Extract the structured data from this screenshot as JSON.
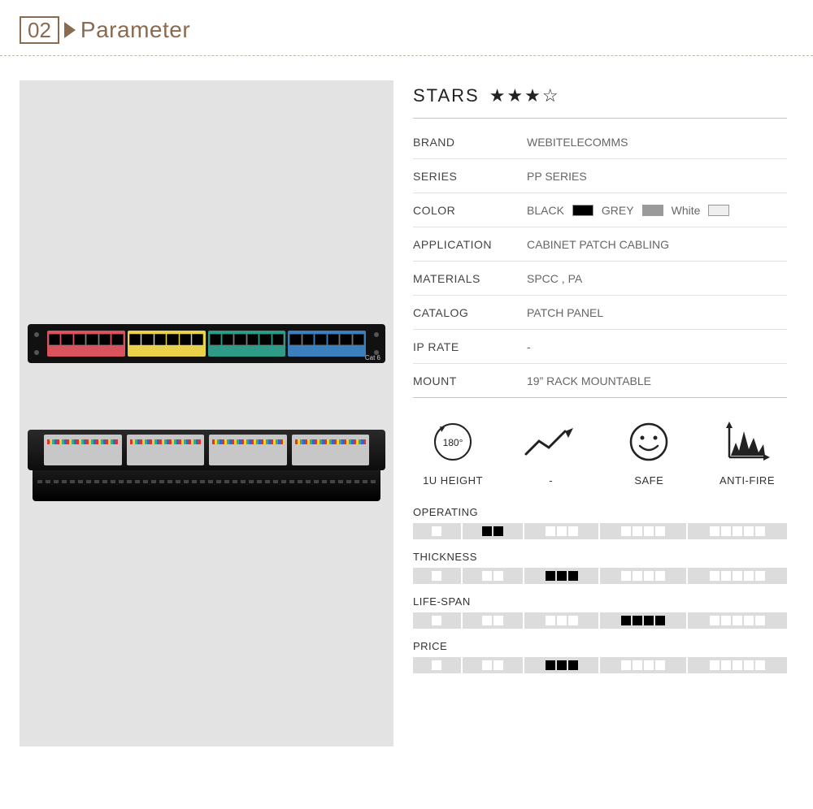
{
  "section": {
    "number": "02",
    "title": "Parameter"
  },
  "colors": {
    "accent": "#8a6b50",
    "panel_bg": "#e3e3e3",
    "port_groups": [
      "#d9535f",
      "#e9d24a",
      "#2e9b87",
      "#3b7fbf"
    ],
    "swatches": {
      "black": "#000000",
      "grey": "#9a9a9a",
      "white": "#efefef"
    }
  },
  "stars": {
    "label": "STARS",
    "value": "★★★☆"
  },
  "spec": {
    "brand": {
      "label": "BRAND",
      "value": "WEBITELECOMMS"
    },
    "series": {
      "label": "SERIES",
      "value": "PP SERIES"
    },
    "color": {
      "label": "COLOR",
      "options": [
        {
          "name": "BLACK",
          "swatch": "#000000"
        },
        {
          "name": "GREY",
          "swatch": "#9a9a9a"
        },
        {
          "name": "White",
          "swatch": "#efefef"
        }
      ]
    },
    "application": {
      "label": "APPLICATION",
      "value": "CABINET PATCH CABLING"
    },
    "materials": {
      "label": "MATERIALS",
      "value": "SPCC , PA"
    },
    "catalog": {
      "label": "CATALOG",
      "value": "PATCH PANEL"
    },
    "ip_rate": {
      "label": "IP RATE",
      "value": "-"
    },
    "mount": {
      "label": "MOUNT",
      "value": "19”  RACK MOUNTABLE"
    }
  },
  "icons": [
    {
      "id": "height-180",
      "label": "1U HEIGHT",
      "badge": "180°"
    },
    {
      "id": "trend",
      "label": "-"
    },
    {
      "id": "smile",
      "label": "SAFE"
    },
    {
      "id": "fire-chart",
      "label": "ANTI-FIRE"
    }
  ],
  "ratings": [
    {
      "label": "OPERATING",
      "selected": 2
    },
    {
      "label": "THICKNESS",
      "selected": 3
    },
    {
      "label": "LIFE-SPAN",
      "selected": 4
    },
    {
      "label": "PRICE",
      "selected": 3
    }
  ],
  "product_image": {
    "type": "patch-panel",
    "ports": 24,
    "label": "Cat 6"
  }
}
